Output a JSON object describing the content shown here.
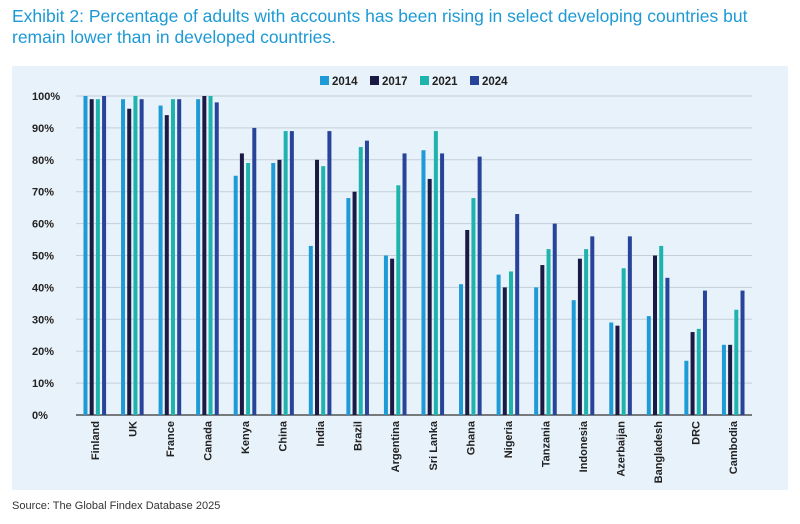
{
  "title": "Exhibit 2: Percentage of adults with accounts has been rising in select developing countries but remain lower than in developed countries.",
  "source": "Source: The Global Findex Database 2025",
  "chart_data": {
    "type": "bar",
    "title": "",
    "xlabel": "",
    "ylabel": "",
    "ylim": [
      0,
      100
    ],
    "yticks": [
      "0%",
      "10%",
      "20%",
      "30%",
      "40%",
      "50%",
      "60%",
      "70%",
      "80%",
      "90%",
      "100%"
    ],
    "grid": true,
    "legend_position": "top-center",
    "categories": [
      "Finland",
      "UK",
      "France",
      "Canada",
      "Kenya",
      "China",
      "India",
      "Brazil",
      "Argentina",
      "Sri Lanka",
      "Ghana",
      "Nigeria",
      "Tanzania",
      "Indonesia",
      "Azerbaijan",
      "Bangladesh",
      "DRC",
      "Cambodia"
    ],
    "series": [
      {
        "name": "2014",
        "color": "#1e9ad6",
        "values": [
          100,
          99,
          97,
          99,
          75,
          79,
          53,
          68,
          50,
          83,
          41,
          44,
          40,
          36,
          29,
          31,
          17,
          22
        ]
      },
      {
        "name": "2017",
        "color": "#1b1a45",
        "values": [
          99,
          96,
          94,
          100,
          82,
          80,
          80,
          70,
          49,
          74,
          58,
          40,
          47,
          49,
          28,
          50,
          26,
          22
        ]
      },
      {
        "name": "2021",
        "color": "#1eb3ad",
        "values": [
          99,
          100,
          99,
          100,
          79,
          89,
          78,
          84,
          72,
          89,
          68,
          45,
          52,
          52,
          46,
          53,
          27,
          33
        ]
      },
      {
        "name": "2024",
        "color": "#27449a",
        "values": [
          100,
          99,
          99,
          98,
          90,
          89,
          89,
          86,
          82,
          82,
          81,
          63,
          60,
          56,
          56,
          43,
          39,
          39
        ]
      }
    ]
  }
}
